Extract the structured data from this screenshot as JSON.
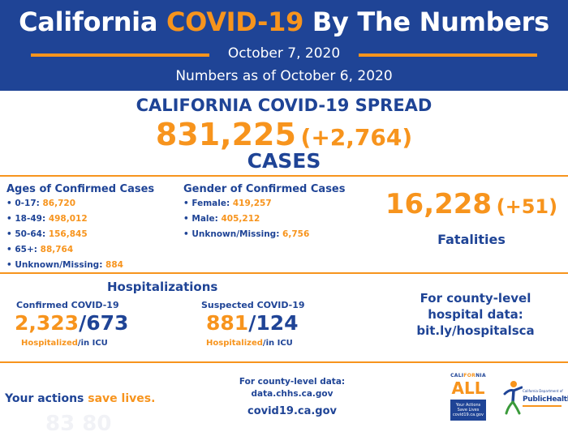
{
  "header": {
    "title_prefix": "California ",
    "title_accent": "COVID-19",
    "title_suffix": " By The Numbers",
    "date": "October 7, 2020",
    "as_of": "Numbers as of October 6, 2020"
  },
  "spread": {
    "title": "CALIFORNIA COVID-19 SPREAD",
    "cases": "831,225",
    "cases_delta": "(+2,764)",
    "cases_label": "CASES"
  },
  "ages": {
    "title": "Ages of Confirmed Cases",
    "items": [
      {
        "label": "• 0-17: ",
        "value": "86,720"
      },
      {
        "label": "• 18-49: ",
        "value": "498,012"
      },
      {
        "label": "• 50-64: ",
        "value": "156,845"
      },
      {
        "label": "• 65+: ",
        "value": "88,764"
      },
      {
        "label": "• Unknown/Missing: ",
        "value": "884"
      }
    ]
  },
  "gender": {
    "title": "Gender of Confirmed Cases",
    "items": [
      {
        "label": "• Female: ",
        "value": "419,257"
      },
      {
        "label": "• Male: ",
        "value": "405,212"
      },
      {
        "label": "• Unknown/Missing: ",
        "value": "6,756"
      }
    ]
  },
  "fatalities": {
    "count": "16,228",
    "delta": "(+51)",
    "label": "Fatalities"
  },
  "hospitalizations": {
    "title": "Hospitalizations",
    "confirmed": {
      "label": "Confirmed COVID-19",
      "hospitalized": "2,323",
      "separator": "/",
      "icu": "673",
      "hosp_label": "Hospitalized",
      "icu_label": "/in ICU"
    },
    "suspected": {
      "label": "Suspected COVID-19",
      "hospitalized": "881",
      "separator": "/",
      "icu": "124",
      "hosp_label": "Hospitalized",
      "icu_label": "/in ICU"
    }
  },
  "county_hospital": {
    "line1": "For county-level",
    "line2": "hospital data:",
    "link": "bit.ly/hospitalsca"
  },
  "footer": {
    "actions_prefix": "Your actions ",
    "actions_accent": "save lives.",
    "ghost_text": "83 80",
    "county_label": "For county-level data:",
    "county_url": "data.chhs.ca.gov",
    "site": "covid19.ca.gov"
  },
  "logos": {
    "ca_all_top_blue1": "CALI",
    "ca_all_top_orange": "FOR",
    "ca_all_top_blue2": "NIA",
    "ca_all_word": "ALL",
    "ca_all_line1": "Your Actions",
    "ca_all_line2": "Save Lives",
    "ca_all_line3": "covid19.ca.gov",
    "cdph_small": "California Department of",
    "cdph_text": "PublicHealth"
  },
  "colors": {
    "brand_blue": "#1f4496",
    "accent_orange": "#f7941d",
    "icon": "person-figure-icon"
  }
}
